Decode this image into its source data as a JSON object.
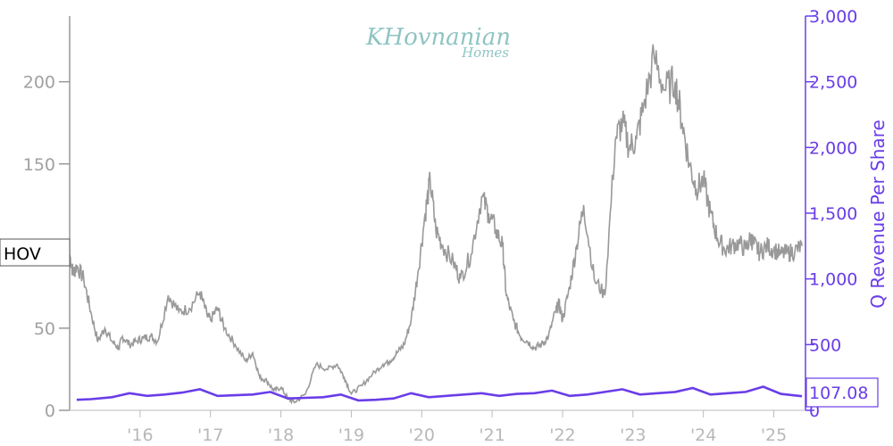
{
  "logo": {
    "text": "KHovnanian",
    "sub": "Homes",
    "color": "#8fc4c4"
  },
  "ticker": {
    "label": "HOV"
  },
  "colors": {
    "price": "#999999",
    "revenue": "#6a3de8",
    "axis_left": "#a0a0a0",
    "axis_x": "#b8b8b8"
  },
  "chart_data": {
    "type": "line",
    "x_ticks": [
      "'16",
      "'17",
      "'18",
      "'19",
      "'20",
      "'21",
      "'22",
      "'23",
      "'24",
      "'25"
    ],
    "x_range": [
      2015.0,
      2025.45
    ],
    "y_left": {
      "ticks": [
        "0",
        "50",
        "150",
        "200"
      ],
      "range": [
        0,
        240
      ]
    },
    "y_right": {
      "label": "Q Revenue Per Share",
      "ticks": [
        "0",
        "500",
        "1,000",
        "1,500",
        "2,000",
        "2,500",
        "3,000"
      ],
      "range": [
        0,
        3000
      ]
    },
    "series": [
      {
        "axis": "left",
        "x": [
          2015.0,
          2015.05,
          2015.1,
          2015.2,
          2015.3,
          2015.4,
          2015.5,
          2015.6,
          2015.7,
          2015.75,
          2015.85,
          2015.95,
          2016.05,
          2016.15,
          2016.25,
          2016.4,
          2016.55,
          2016.7,
          2016.85,
          2016.95,
          2017.0,
          2017.1,
          2017.2,
          2017.35,
          2017.5,
          2017.6,
          2017.7,
          2017.8,
          2017.9,
          2018.0,
          2018.1,
          2018.2,
          2018.35,
          2018.5,
          2018.65,
          2018.8,
          2018.9,
          2019.0,
          2019.15,
          2019.3,
          2019.45,
          2019.55,
          2019.65,
          2019.75,
          2019.85,
          2019.95,
          2020.05,
          2020.12,
          2020.2,
          2020.3,
          2020.45,
          2020.55,
          2020.7,
          2020.85,
          2020.95,
          2021.05,
          2021.15,
          2021.2,
          2021.3,
          2021.4,
          2021.5,
          2021.6,
          2021.7,
          2021.8,
          2021.9,
          2021.95,
          2022.0,
          2022.1,
          2022.2,
          2022.3,
          2022.45,
          2022.6,
          2022.75,
          2022.85,
          2022.95,
          2023.05,
          2023.15,
          2023.3,
          2023.45,
          2023.6,
          2023.7,
          2023.8,
          2023.9,
          2024.0,
          2024.1,
          2024.2,
          2024.3,
          2024.4,
          2024.5,
          2024.6,
          2024.67,
          2024.72,
          2024.8,
          2024.9,
          2025.0,
          2025.1,
          2025.2,
          2025.3,
          2025.4
        ],
        "values": [
          95,
          83,
          88,
          80,
          60,
          42,
          50,
          42,
          38,
          45,
          40,
          42,
          44,
          45,
          42,
          70,
          60,
          62,
          72,
          58,
          55,
          62,
          50,
          40,
          30,
          35,
          20,
          18,
          12,
          14,
          7,
          5,
          10,
          28,
          25,
          28,
          20,
          10,
          15,
          22,
          28,
          30,
          35,
          40,
          55,
          85,
          120,
          140,
          110,
          100,
          90,
          80,
          95,
          130,
          120,
          110,
          100,
          70,
          55,
          45,
          42,
          38,
          40,
          45,
          60,
          65,
          55,
          75,
          100,
          125,
          80,
          70,
          165,
          175,
          160,
          165,
          185,
          215,
          195,
          200,
          175,
          150,
          135,
          140,
          120,
          105,
          98,
          100,
          102,
          98,
          105,
          101,
          96,
          100,
          98,
          95,
          96,
          97,
          100
        ]
      },
      {
        "name": "Q Revenue Per Share",
        "axis": "right",
        "x": [
          2015.1,
          2015.3,
          2015.6,
          2015.85,
          2016.1,
          2016.35,
          2016.6,
          2016.85,
          2017.1,
          2017.35,
          2017.6,
          2017.85,
          2018.1,
          2018.35,
          2018.6,
          2018.85,
          2019.1,
          2019.35,
          2019.6,
          2019.85,
          2020.1,
          2020.35,
          2020.6,
          2020.85,
          2021.1,
          2021.35,
          2021.6,
          2021.85,
          2022.1,
          2022.35,
          2022.6,
          2022.85,
          2023.1,
          2023.35,
          2023.6,
          2023.85,
          2024.1,
          2024.35,
          2024.6,
          2024.85,
          2025.1,
          2025.4
        ],
        "values": [
          80,
          85,
          100,
          130,
          110,
          120,
          135,
          160,
          110,
          115,
          120,
          140,
          90,
          95,
          100,
          120,
          75,
          80,
          90,
          130,
          100,
          110,
          120,
          130,
          110,
          125,
          130,
          150,
          110,
          120,
          140,
          160,
          120,
          130,
          140,
          170,
          120,
          130,
          140,
          180,
          125,
          107.08
        ]
      }
    ],
    "last_value_label": "107.08"
  }
}
